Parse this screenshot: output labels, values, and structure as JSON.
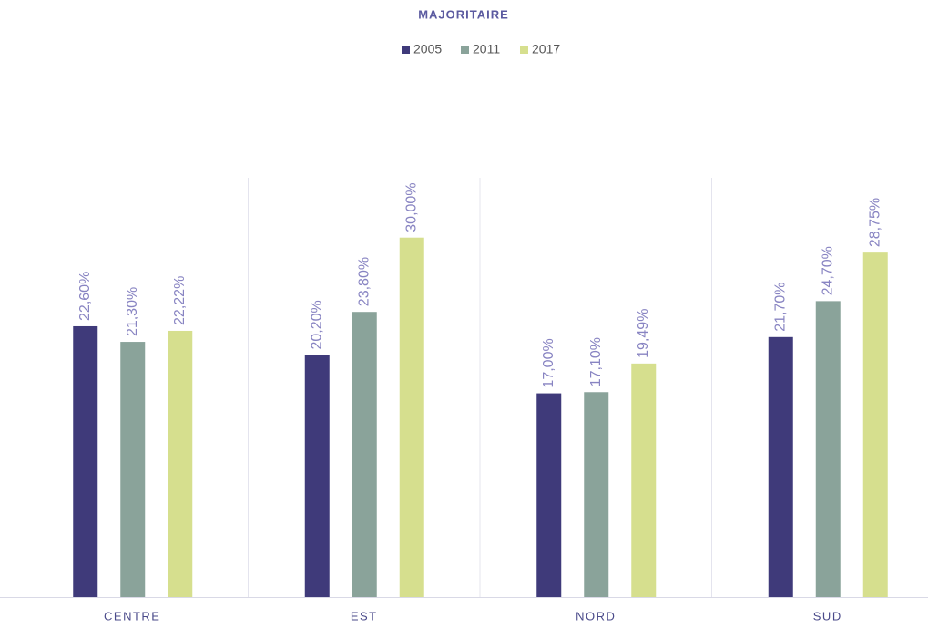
{
  "chart_data": {
    "type": "bar",
    "title": "MAJORITAIRE",
    "categories": [
      "CENTRE",
      "EST",
      "NORD",
      "SUD"
    ],
    "series": [
      {
        "name": "2005",
        "color": "#3f3a7a",
        "values": [
          22.6,
          20.2,
          17.0,
          21.7
        ],
        "value_labels": [
          "22,60%",
          "20,20%",
          "17,00%",
          "21,70%"
        ]
      },
      {
        "name": "2011",
        "color": "#8aa39a",
        "values": [
          21.3,
          23.8,
          17.1,
          24.7
        ],
        "value_labels": [
          "21,30%",
          "23,80%",
          "17,10%",
          "24,70%"
        ]
      },
      {
        "name": "2017",
        "color": "#d6df8e",
        "values": [
          22.22,
          30.0,
          19.49,
          28.75
        ],
        "value_labels": [
          "22,22%",
          "30,00%",
          "19,49%",
          "28,75%"
        ]
      }
    ],
    "ylim": [
      0,
      35
    ],
    "legend": "top"
  }
}
